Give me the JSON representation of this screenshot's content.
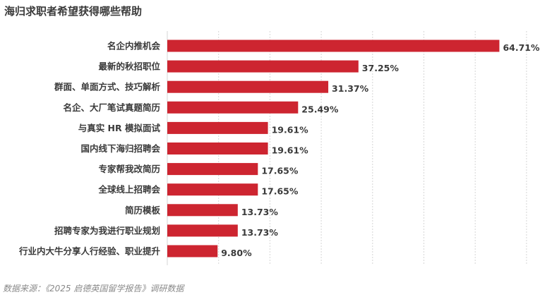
{
  "title": "海归求职者希望获得哪些帮助",
  "footer": "数据来源：《2025 启德英国留学报告》调研数据",
  "colors": {
    "bar": "#cd2530",
    "grid": "#d6d6d6",
    "label": "#3a3a3a",
    "value": "#3a3a3a",
    "title": "#3a3a3a",
    "footer": "#8a8a8a"
  },
  "chart_data": {
    "type": "bar",
    "orientation": "horizontal",
    "title": "海归求职者希望获得哪些帮助",
    "xlim": [
      0,
      70
    ],
    "grid": "vertical",
    "legend": "none",
    "categories": [
      "名企内推机会",
      "最新的秋招职位",
      "群面、单面方式、技巧解析",
      "名企、大厂笔试真题简历",
      "与真实 HR 模拟面试",
      "国内线下海归招聘会",
      "专家帮我改简历",
      "全球线上招聘会",
      "简历模板",
      "招聘专家为我进行职业规划",
      "行业内大牛分享人行经验、职业提升"
    ],
    "values": [
      64.71,
      37.25,
      31.37,
      25.49,
      19.61,
      19.61,
      17.65,
      17.65,
      13.73,
      13.73,
      9.8
    ],
    "value_labels": [
      "64.71%",
      "37.25%",
      "31.37%",
      "25.49%",
      "19.61%",
      "19.61%",
      "17.65%",
      "17.65%",
      "13.73%",
      "13.73%",
      "9.80%"
    ]
  }
}
